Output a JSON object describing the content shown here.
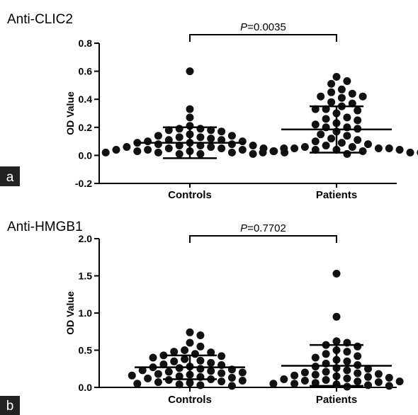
{
  "chart_data": [
    {
      "type": "scatter",
      "panel_label": "a",
      "title": "Anti-CLIC2",
      "ylabel": "OD Value",
      "xlabel": "",
      "categories": [
        "Controls",
        "Patients"
      ],
      "ylim": [
        -0.2,
        0.8
      ],
      "yticks": [
        -0.2,
        0.0,
        0.2,
        0.4,
        0.6,
        0.8
      ],
      "ytick_labels": [
        "-0.2",
        "0.0",
        "0.2",
        "0.4",
        "0.6",
        "0.8"
      ],
      "p_value": "=0.0035",
      "p_symbol": "P",
      "series": [
        {
          "category": "Controls",
          "mean": 0.09,
          "sd_upper": 0.2,
          "sd_lower": -0.02,
          "points": [
            0.6,
            0.33,
            0.27,
            0.21,
            0.19,
            0.19,
            0.18,
            0.18,
            0.17,
            0.15,
            0.14,
            0.14,
            0.13,
            0.13,
            0.12,
            0.11,
            0.11,
            0.1,
            0.1,
            0.09,
            0.09,
            0.08,
            0.08,
            0.07,
            0.07,
            0.07,
            0.06,
            0.06,
            0.05,
            0.05,
            0.05,
            0.04,
            0.04,
            0.04,
            0.03,
            0.03,
            0.03,
            0.02,
            0.02,
            0.02,
            0.02,
            0.01,
            0.01,
            0.01
          ]
        },
        {
          "category": "Patients",
          "mean": 0.185,
          "sd_upper": 0.35,
          "sd_lower": 0.02,
          "points": [
            0.56,
            0.53,
            0.51,
            0.47,
            0.45,
            0.44,
            0.42,
            0.42,
            0.41,
            0.38,
            0.37,
            0.35,
            0.33,
            0.33,
            0.32,
            0.3,
            0.27,
            0.26,
            0.25,
            0.23,
            0.22,
            0.2,
            0.2,
            0.19,
            0.17,
            0.15,
            0.14,
            0.12,
            0.11,
            0.1,
            0.09,
            0.08,
            0.07,
            0.06,
            0.06,
            0.05,
            0.05,
            0.05,
            0.05,
            0.04,
            0.04,
            0.04,
            0.03,
            0.03,
            0.02,
            0.02,
            0.02,
            0.01
          ]
        }
      ]
    },
    {
      "type": "scatter",
      "panel_label": "b",
      "title": "Anti-HMGB1",
      "ylabel": "OD Value",
      "xlabel": "",
      "categories": [
        "Controls",
        "Patients"
      ],
      "ylim": [
        0.0,
        2.0
      ],
      "yticks": [
        0.0,
        0.5,
        1.0,
        1.5,
        2.0
      ],
      "ytick_labels": [
        "0.0",
        "0.5",
        "1.0",
        "1.5",
        "2.0"
      ],
      "p_value": "=0.7702",
      "p_symbol": "P",
      "series": [
        {
          "category": "Controls",
          "mean": 0.27,
          "sd_upper": 0.43,
          "sd_lower": 0.11,
          "points": [
            0.74,
            0.7,
            0.6,
            0.55,
            0.5,
            0.48,
            0.47,
            0.45,
            0.43,
            0.42,
            0.4,
            0.38,
            0.36,
            0.35,
            0.33,
            0.31,
            0.3,
            0.28,
            0.27,
            0.26,
            0.25,
            0.24,
            0.23,
            0.22,
            0.21,
            0.2,
            0.19,
            0.18,
            0.17,
            0.16,
            0.15,
            0.14,
            0.13,
            0.12,
            0.11,
            0.1,
            0.09,
            0.08,
            0.07,
            0.06,
            0.05,
            0.04,
            0.03,
            0.02
          ]
        },
        {
          "category": "Patients",
          "mean": 0.29,
          "sd_upper": 0.57,
          "sd_lower": 0.02,
          "points": [
            1.53,
            0.95,
            0.62,
            0.6,
            0.57,
            0.55,
            0.5,
            0.48,
            0.45,
            0.42,
            0.4,
            0.37,
            0.35,
            0.32,
            0.3,
            0.28,
            0.26,
            0.25,
            0.23,
            0.21,
            0.2,
            0.19,
            0.18,
            0.17,
            0.16,
            0.15,
            0.14,
            0.13,
            0.12,
            0.11,
            0.1,
            0.09,
            0.08,
            0.08,
            0.07,
            0.06,
            0.05,
            0.05,
            0.04,
            0.03,
            0.02,
            0.01
          ]
        }
      ]
    }
  ]
}
